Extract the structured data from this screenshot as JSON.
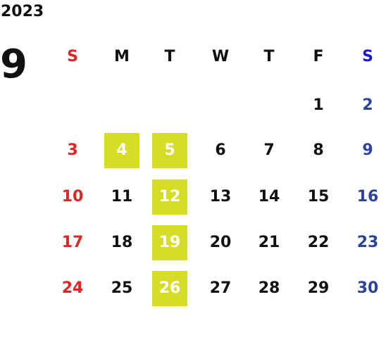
{
  "calendar": {
    "year": "2023",
    "month": "9",
    "weekdays": [
      "S",
      "M",
      "T",
      "W",
      "T",
      "F",
      "S"
    ],
    "weeks": [
      [
        "",
        "",
        "",
        "",
        "",
        "1",
        "2"
      ],
      [
        "3",
        "4",
        "5",
        "6",
        "7",
        "8",
        "9"
      ],
      [
        "10",
        "11",
        "12",
        "13",
        "14",
        "15",
        "16"
      ],
      [
        "17",
        "18",
        "19",
        "20",
        "21",
        "22",
        "23"
      ],
      [
        "24",
        "25",
        "26",
        "27",
        "28",
        "29",
        "30"
      ]
    ],
    "highlighted_days": [
      "4",
      "5",
      "12",
      "19",
      "26"
    ]
  },
  "colors": {
    "sunday": "#e02424",
    "saturday_header": "#1a1ad6",
    "saturday": "#2a43a0",
    "weekday": "#111111",
    "highlight_bg": "#d6dc27",
    "highlight_text": "#ffffff"
  }
}
